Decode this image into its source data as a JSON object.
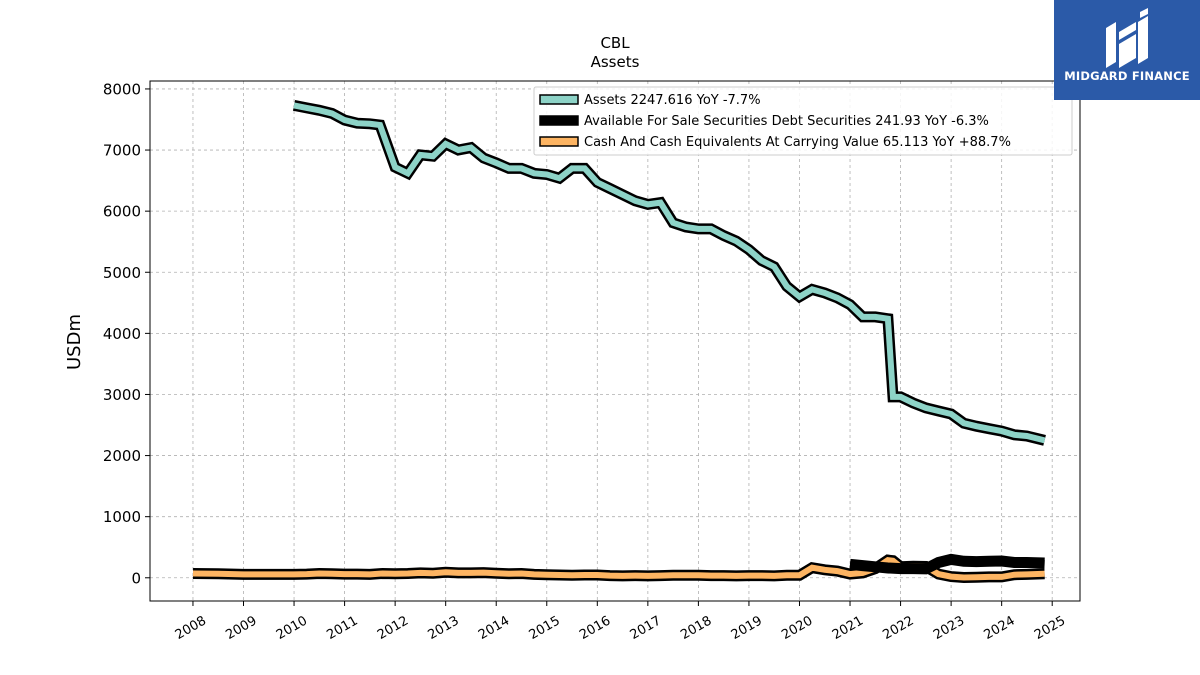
{
  "brand": {
    "name": "MIDGARD FINANCE",
    "color": "#2b5aa8"
  },
  "chart_data": {
    "type": "line",
    "title": "CBL",
    "subtitle": "Assets",
    "ylabel": "USDm",
    "xlabel": "",
    "xlim": [
      2007.15,
      2025.55
    ],
    "ylim": [
      -380,
      8130
    ],
    "x_ticks": [
      "2008",
      "2009",
      "2010",
      "2011",
      "2012",
      "2013",
      "2014",
      "2015",
      "2016",
      "2017",
      "2018",
      "2019",
      "2020",
      "2021",
      "2022",
      "2023",
      "2024",
      "2025"
    ],
    "y_ticks": [
      "0",
      "1000",
      "2000",
      "3000",
      "4000",
      "5000",
      "6000",
      "7000",
      "8000"
    ],
    "grid": true,
    "legend_position": "top-right",
    "series": [
      {
        "name": "Assets",
        "legend": "Assets  2247.616 YoY -7.7%",
        "color": "#8dd3c7",
        "points": [
          [
            2010.0,
            7730
          ],
          [
            2010.25,
            7690
          ],
          [
            2010.5,
            7650
          ],
          [
            2010.75,
            7600
          ],
          [
            2011.0,
            7490
          ],
          [
            2011.25,
            7440
          ],
          [
            2011.5,
            7430
          ],
          [
            2011.7,
            7410
          ],
          [
            2012.0,
            6720
          ],
          [
            2012.25,
            6620
          ],
          [
            2012.5,
            6920
          ],
          [
            2012.75,
            6900
          ],
          [
            2013.0,
            7100
          ],
          [
            2013.25,
            7000
          ],
          [
            2013.5,
            7040
          ],
          [
            2013.75,
            6870
          ],
          [
            2014.0,
            6790
          ],
          [
            2014.25,
            6700
          ],
          [
            2014.5,
            6700
          ],
          [
            2014.75,
            6620
          ],
          [
            2015.0,
            6600
          ],
          [
            2015.25,
            6540
          ],
          [
            2015.5,
            6700
          ],
          [
            2015.75,
            6700
          ],
          [
            2016.0,
            6470
          ],
          [
            2016.25,
            6370
          ],
          [
            2016.5,
            6270
          ],
          [
            2016.75,
            6170
          ],
          [
            2017.0,
            6110
          ],
          [
            2017.25,
            6140
          ],
          [
            2017.5,
            5810
          ],
          [
            2017.75,
            5740
          ],
          [
            2018.0,
            5710
          ],
          [
            2018.25,
            5710
          ],
          [
            2018.5,
            5600
          ],
          [
            2018.75,
            5510
          ],
          [
            2019.0,
            5370
          ],
          [
            2019.25,
            5190
          ],
          [
            2019.5,
            5090
          ],
          [
            2019.75,
            4770
          ],
          [
            2020.0,
            4600
          ],
          [
            2020.25,
            4720
          ],
          [
            2020.5,
            4660
          ],
          [
            2020.75,
            4580
          ],
          [
            2021.0,
            4470
          ],
          [
            2021.25,
            4270
          ],
          [
            2021.5,
            4270
          ],
          [
            2021.75,
            4240
          ],
          [
            2021.85,
            2960
          ],
          [
            2022.0,
            2960
          ],
          [
            2022.25,
            2860
          ],
          [
            2022.5,
            2780
          ],
          [
            2022.75,
            2730
          ],
          [
            2023.0,
            2680
          ],
          [
            2023.25,
            2530
          ],
          [
            2023.5,
            2480
          ],
          [
            2023.75,
            2440
          ],
          [
            2024.0,
            2400
          ],
          [
            2024.25,
            2340
          ],
          [
            2024.5,
            2320
          ],
          [
            2024.85,
            2248
          ]
        ]
      },
      {
        "name": "Available For Sale Securities Debt Securities",
        "legend": "Available For Sale Securities Debt Securities  241.93 YoY -6.3%",
        "color": "#000000",
        "points": [
          [
            2021.0,
            220
          ],
          [
            2021.25,
            200
          ],
          [
            2021.5,
            180
          ],
          [
            2021.75,
            160
          ],
          [
            2022.0,
            150
          ],
          [
            2022.25,
            150
          ],
          [
            2022.5,
            145
          ],
          [
            2022.75,
            250
          ],
          [
            2023.0,
            300
          ],
          [
            2023.25,
            270
          ],
          [
            2023.5,
            265
          ],
          [
            2023.75,
            270
          ],
          [
            2024.0,
            275
          ],
          [
            2024.25,
            250
          ],
          [
            2024.5,
            250
          ],
          [
            2024.85,
            242
          ]
        ]
      },
      {
        "name": "Cash And Cash Equivalents At Carrying Value",
        "legend": "Cash And Cash Equivalents At Carrying Value  65.113 YoY +88.7%",
        "color": "#fdb462",
        "points": [
          [
            2008.0,
            70
          ],
          [
            2008.5,
            65
          ],
          [
            2009.0,
            55
          ],
          [
            2009.5,
            55
          ],
          [
            2010.0,
            55
          ],
          [
            2010.25,
            60
          ],
          [
            2010.5,
            70
          ],
          [
            2010.75,
            65
          ],
          [
            2011.0,
            60
          ],
          [
            2011.25,
            60
          ],
          [
            2011.5,
            55
          ],
          [
            2011.75,
            70
          ],
          [
            2012.0,
            65
          ],
          [
            2012.25,
            70
          ],
          [
            2012.5,
            80
          ],
          [
            2012.75,
            75
          ],
          [
            2013.0,
            90
          ],
          [
            2013.25,
            80
          ],
          [
            2013.5,
            80
          ],
          [
            2013.75,
            85
          ],
          [
            2014.0,
            75
          ],
          [
            2014.25,
            65
          ],
          [
            2014.5,
            70
          ],
          [
            2014.75,
            55
          ],
          [
            2015.0,
            50
          ],
          [
            2015.25,
            45
          ],
          [
            2015.5,
            40
          ],
          [
            2015.75,
            45
          ],
          [
            2016.0,
            45
          ],
          [
            2016.25,
            35
          ],
          [
            2016.5,
            30
          ],
          [
            2016.75,
            35
          ],
          [
            2017.0,
            30
          ],
          [
            2017.25,
            35
          ],
          [
            2017.5,
            40
          ],
          [
            2017.75,
            40
          ],
          [
            2018.0,
            40
          ],
          [
            2018.25,
            35
          ],
          [
            2018.5,
            35
          ],
          [
            2018.75,
            30
          ],
          [
            2019.0,
            35
          ],
          [
            2019.25,
            35
          ],
          [
            2019.5,
            30
          ],
          [
            2019.75,
            40
          ],
          [
            2020.0,
            40
          ],
          [
            2020.25,
            165
          ],
          [
            2020.5,
            130
          ],
          [
            2020.75,
            110
          ],
          [
            2021.0,
            60
          ],
          [
            2021.25,
            80
          ],
          [
            2021.5,
            150
          ],
          [
            2021.75,
            290
          ],
          [
            2021.85,
            280
          ],
          [
            2022.0,
            180
          ],
          [
            2022.25,
            190
          ],
          [
            2022.5,
            185
          ],
          [
            2022.75,
            60
          ],
          [
            2023.0,
            20
          ],
          [
            2023.25,
            5
          ],
          [
            2023.5,
            10
          ],
          [
            2023.75,
            15
          ],
          [
            2024.0,
            15
          ],
          [
            2024.25,
            50
          ],
          [
            2024.5,
            55
          ],
          [
            2024.85,
            65
          ]
        ]
      }
    ]
  }
}
